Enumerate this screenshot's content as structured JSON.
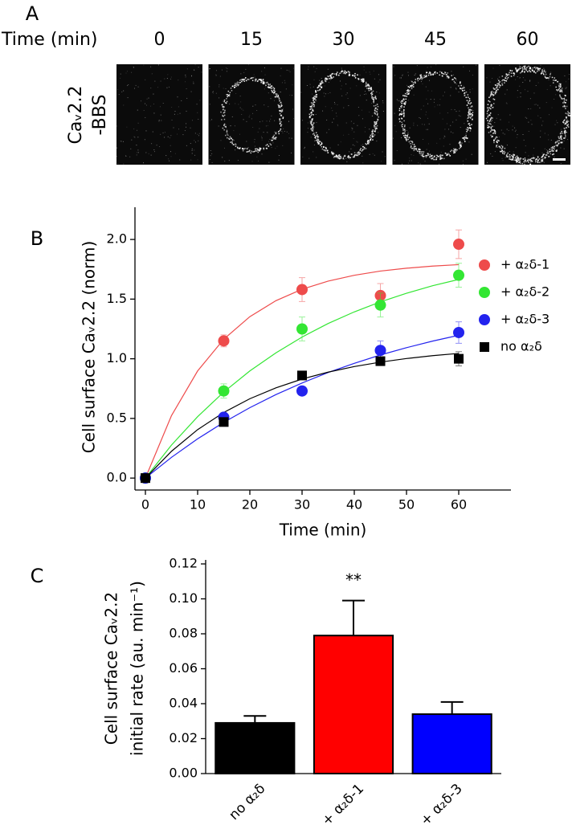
{
  "panel_a": {
    "label": "A",
    "time_label": "Time (min)",
    "times": [
      "0",
      "15",
      "30",
      "45",
      "60"
    ],
    "row_label": [
      "Caᵥ2.2",
      "-BBS"
    ]
  },
  "chart_data": [
    {
      "type": "scatter",
      "label": "B",
      "xlabel": "Time (min)",
      "ylabel": "Cell surface Caᵥ2.2 (norm)",
      "x": [
        0,
        15,
        30,
        45,
        60
      ],
      "xlim": [
        -2,
        70
      ],
      "xticks": [
        0,
        10,
        20,
        30,
        40,
        50,
        60
      ],
      "ylim": [
        -0.1,
        2.27
      ],
      "yticks": [
        {
          "value": 0,
          "label": "0.0"
        },
        0.5,
        {
          "value": 1,
          "label": "1.0"
        },
        1.5,
        {
          "value": 2,
          "label": "2.0"
        }
      ],
      "legend": "right",
      "fit_x": [
        0,
        5,
        10,
        15,
        20,
        25,
        30,
        35,
        40,
        45,
        50,
        55,
        60
      ],
      "series": [
        {
          "name": "+ α₂δ-1",
          "color": "#ee4b4b",
          "marker": "circle",
          "values": [
            0,
            1.15,
            1.58,
            1.53,
            1.96
          ],
          "errors": [
            0,
            0.05,
            0.1,
            0.1,
            0.12
          ],
          "fit_values": [
            0,
            0.524,
            0.898,
            1.164,
            1.353,
            1.487,
            1.583,
            1.651,
            1.7,
            1.735,
            1.759,
            1.777,
            1.789
          ]
        },
        {
          "name": "+ α₂δ-2",
          "color": "#33e633",
          "marker": "circle",
          "values": [
            0,
            0.73,
            1.25,
            1.45,
            1.7
          ],
          "errors": [
            0,
            0.06,
            0.1,
            0.1,
            0.1
          ],
          "fit_values": [
            0,
            0.277,
            0.515,
            0.721,
            0.898,
            1.05,
            1.182,
            1.296,
            1.393,
            1.477,
            1.549,
            1.612,
            1.665
          ]
        },
        {
          "name": "+ α₂δ-3",
          "color": "#2323ee",
          "marker": "circle",
          "values": [
            0,
            0.51,
            0.73,
            1.07,
            1.22
          ],
          "errors": [
            0,
            0.03,
            0.03,
            0.08,
            0.09
          ],
          "fit_values": [
            0,
            0.174,
            0.329,
            0.467,
            0.59,
            0.7,
            0.797,
            0.885,
            0.962,
            1.032,
            1.093,
            1.148,
            1.197
          ]
        },
        {
          "name": "no α₂δ",
          "color": "#000000",
          "marker": "square",
          "values": [
            0,
            0.47,
            0.86,
            0.98,
            1.0
          ],
          "errors": [
            0,
            0.02,
            0.03,
            0.03,
            0.06
          ],
          "fit_values": [
            0,
            0.225,
            0.406,
            0.55,
            0.665,
            0.756,
            0.83,
            0.888,
            0.935,
            0.972,
            1.002,
            1.026,
            1.045
          ]
        }
      ]
    },
    {
      "type": "bar",
      "label": "C",
      "ylabel": [
        "Cell surface Caᵥ2.2",
        "initial rate (au. min⁻¹)"
      ],
      "categories": [
        "no α₂δ",
        "+ α₂δ-1",
        "+ α₂δ-3"
      ],
      "values": [
        0.029,
        0.079,
        0.034
      ],
      "errors": [
        0.004,
        0.02,
        0.007
      ],
      "colors": [
        "#000000",
        "#ff0000",
        "#0000ff"
      ],
      "value_annotations": [
        null,
        "**",
        null
      ],
      "ylim": [
        0,
        0.12
      ],
      "yticks": [
        {
          "value": 0,
          "label": "0.00"
        },
        0.02,
        0.04,
        0.06,
        0.08,
        {
          "value": 0.1,
          "label": "0.10"
        },
        0.12
      ]
    }
  ]
}
